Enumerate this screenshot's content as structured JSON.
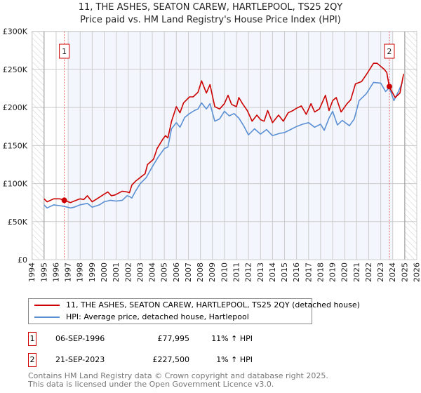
{
  "title_line1": "11, THE ASHES, SEATON CAREW, HARTLEPOOL, TS25 2QY",
  "title_line2": "Price paid vs. HM Land Registry's House Price Index (HPI)",
  "colors": {
    "property": "#cc0000",
    "hpi": "#5b8fd4",
    "shade": "#f3f6fd"
  },
  "legend": [
    {
      "label": "11, THE ASHES, SEATON CAREW, HARTLEPOOL, TS25 2QY (detached house)"
    },
    {
      "label": "HPI: Average price, detached house, Hartlepool"
    }
  ],
  "sales": [
    {
      "num": "1",
      "date": "06-SEP-1996",
      "price": "£77,995",
      "hpi": "11% ↑ HPI",
      "year": 1996.68,
      "value": 78
    },
    {
      "num": "2",
      "date": "21-SEP-2023",
      "price": "£227,500",
      "hpi": "1% ↑ HPI",
      "year": 2023.72,
      "value": 227.5
    }
  ],
  "footer": {
    "line1": "Contains HM Land Registry data © Crown copyright and database right 2025.",
    "line2": "This data is licensed under the Open Government Licence v3.0."
  },
  "chart_data": {
    "type": "line",
    "title": "11, THE ASHES, SEATON CAREW, HARTLEPOOL, TS25 2QY — Price paid vs. HM Land Registry's House Price Index (HPI)",
    "xlim": [
      1994,
      2026
    ],
    "ylim": [
      0,
      300
    ],
    "y_unit": "£K",
    "yticks": [
      0,
      50,
      100,
      150,
      200,
      250,
      300
    ],
    "ytick_labels": [
      "£0",
      "£50K",
      "£100K",
      "£150K",
      "£200K",
      "£250K",
      "£300K"
    ],
    "xticks": [
      "1994",
      "1995",
      "1996",
      "1997",
      "1998",
      "1999",
      "2000",
      "2001",
      "2002",
      "2003",
      "2004",
      "2005",
      "2006",
      "2007",
      "2008",
      "2009",
      "2010",
      "2011",
      "2012",
      "2013",
      "2014",
      "2015",
      "2016",
      "2017",
      "2018",
      "2019",
      "2020",
      "2021",
      "2022",
      "2023",
      "2024",
      "2025",
      "2026"
    ],
    "grid": true,
    "legend_position": "bottom",
    "series": [
      {
        "name": "11, THE ASHES, SEATON CAREW, HARTLEPOOL, TS25 2QY (detached house)",
        "x": [
          1995.0,
          1995.25,
          1995.8,
          1996.3,
          1996.68,
          1997.2,
          1997.5,
          1998.0,
          1998.3,
          1998.6,
          1999.0,
          1999.6,
          2000.0,
          2000.3,
          2000.6,
          2000.9,
          2001.5,
          2001.9,
          2002.1,
          2002.3,
          2002.6,
          2003.0,
          2003.4,
          2003.6,
          2004.1,
          2004.4,
          2004.9,
          2005.1,
          2005.3,
          2005.6,
          2006.0,
          2006.3,
          2006.6,
          2007.1,
          2007.4,
          2007.8,
          2008.1,
          2008.5,
          2008.8,
          2009.2,
          2009.6,
          2010.0,
          2010.3,
          2010.6,
          2011.0,
          2011.2,
          2011.5,
          2011.9,
          2012.3,
          2012.7,
          2013.0,
          2013.3,
          2013.6,
          2014.0,
          2014.5,
          2014.9,
          2015.3,
          2015.7,
          2016.0,
          2016.4,
          2016.8,
          2017.2,
          2017.5,
          2017.9,
          2018.4,
          2018.7,
          2019.0,
          2019.3,
          2019.7,
          2020.2,
          2020.5,
          2020.9,
          2021.4,
          2021.8,
          2022.4,
          2022.7,
          2023.3,
          2023.5,
          2023.72,
          2024.2,
          2024.6,
          2024.9
        ],
        "values": [
          80,
          76,
          80,
          80,
          78,
          75,
          77,
          80,
          79,
          84,
          76,
          82,
          86,
          89,
          84,
          85,
          90,
          89,
          88,
          98,
          103,
          108,
          113,
          125,
          132,
          146,
          159,
          163,
          160,
          182,
          201,
          193,
          206,
          214,
          214,
          220,
          235,
          219,
          230,
          201,
          198,
          205,
          216,
          204,
          201,
          213,
          205,
          196,
          182,
          190,
          184,
          182,
          196,
          180,
          190,
          182,
          193,
          196,
          199,
          202,
          191,
          205,
          194,
          198,
          216,
          196,
          209,
          213,
          194,
          205,
          210,
          231,
          234,
          243,
          258,
          258,
          250,
          246,
          227,
          213,
          219,
          244
        ]
      },
      {
        "name": "HPI: Average price, detached house, Hartlepool",
        "x": [
          1995.0,
          1995.25,
          1995.8,
          1996.3,
          1996.68,
          1997.2,
          1997.5,
          1998.0,
          1998.6,
          1999.0,
          1999.6,
          2000.0,
          2000.5,
          2001.0,
          2001.5,
          2001.9,
          2002.1,
          2002.3,
          2002.6,
          2003.0,
          2003.5,
          2004.0,
          2004.5,
          2005.0,
          2005.3,
          2005.6,
          2006.0,
          2006.3,
          2006.7,
          2007.1,
          2007.5,
          2007.8,
          2008.1,
          2008.5,
          2008.8,
          2009.2,
          2009.6,
          2010.0,
          2010.4,
          2010.8,
          2011.2,
          2011.6,
          2012.0,
          2012.5,
          2013.0,
          2013.5,
          2014.0,
          2014.6,
          2015.0,
          2015.5,
          2016.0,
          2016.5,
          2017.0,
          2017.5,
          2018.0,
          2018.3,
          2018.7,
          2019.0,
          2019.4,
          2019.8,
          2020.4,
          2020.8,
          2021.2,
          2021.8,
          2022.4,
          2023.0,
          2023.4,
          2023.72,
          2024.1,
          2024.5,
          2024.8
        ],
        "values": [
          72,
          68,
          72,
          71,
          70,
          68,
          69,
          72,
          74,
          69,
          72,
          76,
          78,
          77,
          78,
          84,
          83,
          81,
          90,
          100,
          108,
          122,
          135,
          146,
          148,
          172,
          180,
          174,
          187,
          192,
          196,
          198,
          206,
          198,
          205,
          182,
          185,
          195,
          189,
          192,
          186,
          176,
          164,
          172,
          165,
          171,
          163,
          166,
          167,
          171,
          175,
          178,
          180,
          174,
          178,
          170,
          186,
          195,
          177,
          183,
          176,
          185,
          209,
          218,
          233,
          232,
          221,
          226,
          209,
          222,
          233
        ]
      }
    ],
    "annotations": [
      {
        "label": "1",
        "x": 1996.68
      },
      {
        "label": "2",
        "x": 2023.72
      }
    ]
  }
}
